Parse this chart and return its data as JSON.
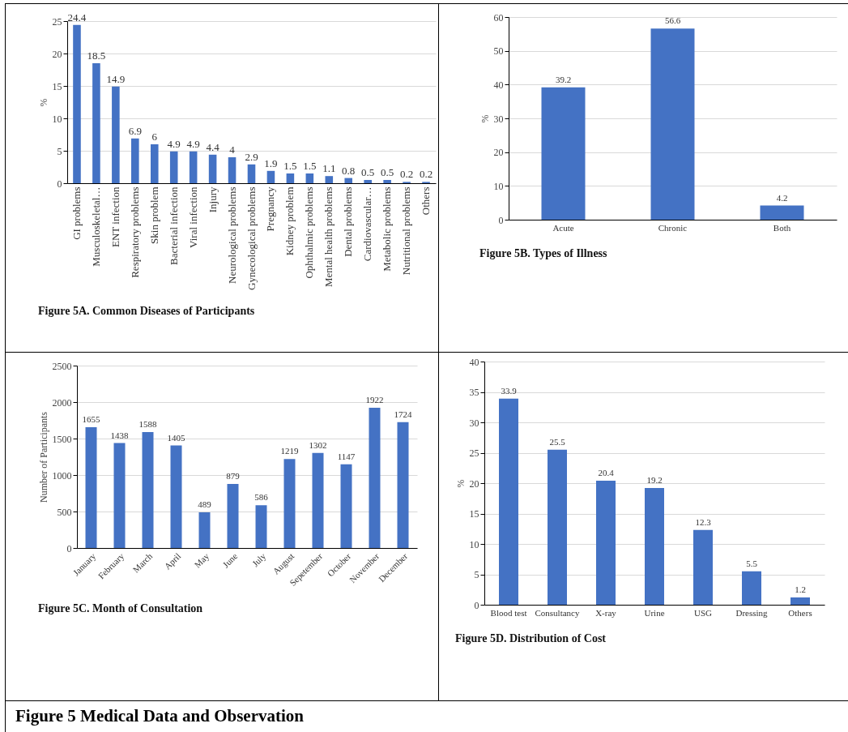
{
  "chart_data": [
    {
      "type": "bar",
      "title": "Figure 5A. Common Diseases of Participants",
      "ylabel": "%",
      "categories": [
        "GI problems",
        "Musculoskeletal…",
        "ENT infection",
        "Respiratory problems",
        "Skin problem",
        "Bacterial infection",
        "Viral infection",
        "Injury",
        "Neurological problems",
        "Gynecological problems",
        "Pregnancy",
        "Kidney problem",
        "Ophthalmic problems",
        "Mental health problems",
        "Dental problems",
        "Cardiovascular…",
        "Metabolic problems",
        "Nutritional problems",
        "Others"
      ],
      "values": [
        24.4,
        18.5,
        14.9,
        6.9,
        6,
        4.9,
        4.9,
        4.4,
        4,
        2.9,
        1.9,
        1.5,
        1.5,
        1.1,
        0.8,
        0.5,
        0.5,
        0.2,
        0.2
      ],
      "color": "#4472c4",
      "ylim": [
        0,
        25
      ],
      "yticks": [
        0,
        5,
        10,
        15,
        20,
        25
      ],
      "grid": "y",
      "data_labels": true
    },
    {
      "type": "bar",
      "title": "Figure 5B. Types of Illness",
      "ylabel": "%",
      "categories": [
        "Acute",
        "Chronic",
        "Both"
      ],
      "values": [
        39.2,
        56.6,
        4.2
      ],
      "color": "#4472c4",
      "ylim": [
        0,
        60
      ],
      "yticks": [
        0,
        10,
        20,
        30,
        40,
        50,
        60
      ],
      "grid": "y",
      "data_labels": true
    },
    {
      "type": "bar",
      "title": "Figure 5C. Month of Consultation",
      "ylabel": "Number of Participants",
      "categories": [
        "January",
        "February",
        "March",
        "April",
        "May",
        "June",
        "July",
        "August",
        "Sepetember",
        "October",
        "November",
        "December"
      ],
      "values": [
        1655,
        1438,
        1588,
        1405,
        489,
        879,
        586,
        1219,
        1302,
        1147,
        1922,
        1724
      ],
      "color": "#4472c4",
      "ylim": [
        0,
        2500
      ],
      "yticks": [
        0,
        500,
        1000,
        1500,
        2000,
        2500
      ],
      "grid": "y",
      "data_labels": true
    },
    {
      "type": "bar",
      "title": "Figure 5D. Distribution of Cost",
      "ylabel": "%",
      "categories": [
        "Blood test",
        "Consultancy",
        "X-ray",
        "Urine",
        "USG",
        "Dressing",
        "Others"
      ],
      "values": [
        33.9,
        25.5,
        20.4,
        19.2,
        12.3,
        5.5,
        1.2
      ],
      "color": "#4472c4",
      "ylim": [
        0,
        40
      ],
      "yticks": [
        0,
        5,
        10,
        15,
        20,
        25,
        30,
        35,
        40
      ],
      "grid": "y",
      "data_labels": true,
      "annotations": [
        "Figure 5 Medical Data and Observation"
      ]
    }
  ]
}
